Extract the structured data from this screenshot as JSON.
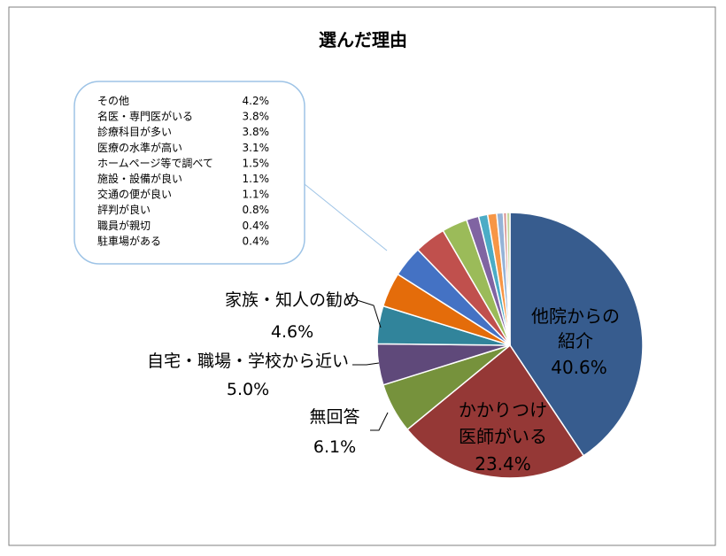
{
  "chart_data": {
    "type": "pie",
    "title": "選んだ理由",
    "slices": [
      {
        "label": "他院からの紹介",
        "value": 40.6,
        "color": "#375C8E",
        "value_text": "40.6%"
      },
      {
        "label": "かかりつけ医師がいる",
        "value": 23.4,
        "color": "#953836",
        "value_text": "23.4%"
      },
      {
        "label": "無回答",
        "value": 6.1,
        "color": "#76923C",
        "value_text": "6.1%"
      },
      {
        "label": "自宅・職場・学校から近い",
        "value": 5.0,
        "color": "#5F497A",
        "value_text": "5.0%"
      },
      {
        "label": "家族・知人の勧め",
        "value": 4.6,
        "color": "#31849B",
        "value_text": "4.6%"
      },
      {
        "label": "その他",
        "value": 4.2,
        "color": "#E46C0A",
        "value_text": "4.2%"
      },
      {
        "label": "名医・専門医がいる",
        "value": 3.8,
        "color": "#4472C4",
        "value_text": "3.8%"
      },
      {
        "label": "診療科目が多い",
        "value": 3.8,
        "color": "#C0504D",
        "value_text": "3.8%"
      },
      {
        "label": "医療の水準が高い",
        "value": 3.1,
        "color": "#9BBB59",
        "value_text": "3.1%"
      },
      {
        "label": "ホームページ等で調べて",
        "value": 1.5,
        "color": "#8064A2",
        "value_text": "1.5%"
      },
      {
        "label": "施設・設備が良い",
        "value": 1.1,
        "color": "#4BACC6",
        "value_text": "1.1%"
      },
      {
        "label": "交通の便が良い",
        "value": 1.1,
        "color": "#F79646",
        "value_text": "1.1%"
      },
      {
        "label": "評判が良い",
        "value": 0.8,
        "color": "#95B3D7",
        "value_text": "0.8%"
      },
      {
        "label": "職員が親切",
        "value": 0.4,
        "color": "#D99694",
        "value_text": "0.4%"
      },
      {
        "label": "駐車場がある",
        "value": 0.4,
        "color": "#C3D69B",
        "value_text": "0.4%"
      }
    ],
    "callout": [
      {
        "label": "その他",
        "value_text": "4.2%"
      },
      {
        "label": "名医・専門医がいる",
        "value_text": "3.8%"
      },
      {
        "label": "診療科目が多い",
        "value_text": "3.8%"
      },
      {
        "label": "医療の水準が高い",
        "value_text": "3.1%"
      },
      {
        "label": "ホームページ等で調べて",
        "value_text": "1.5%"
      },
      {
        "label": "施設・設備が良い",
        "value_text": "1.1%"
      },
      {
        "label": "交通の便が良い",
        "value_text": "1.1%"
      },
      {
        "label": "評判が良い",
        "value_text": "0.8%"
      },
      {
        "label": "職員が親切",
        "value_text": "0.4%"
      },
      {
        "label": "駐車場がある",
        "value_text": "0.4%"
      }
    ],
    "labels": {
      "inner_1_line1": "他院からの",
      "inner_1_line2": "紹介",
      "inner_1_value": "40.6%",
      "inner_2_line1": "かかりつけ",
      "inner_2_line2": "医師がいる",
      "inner_2_value": "23.4%",
      "outer_family": "家族・知人の勧め",
      "outer_family_value": "4.6%",
      "outer_home": "自宅・職場・学校から近い",
      "outer_home_value": "5.0%",
      "outer_none": "無回答",
      "outer_none_value": "6.1%"
    },
    "legend": "callout-box-top-left"
  }
}
